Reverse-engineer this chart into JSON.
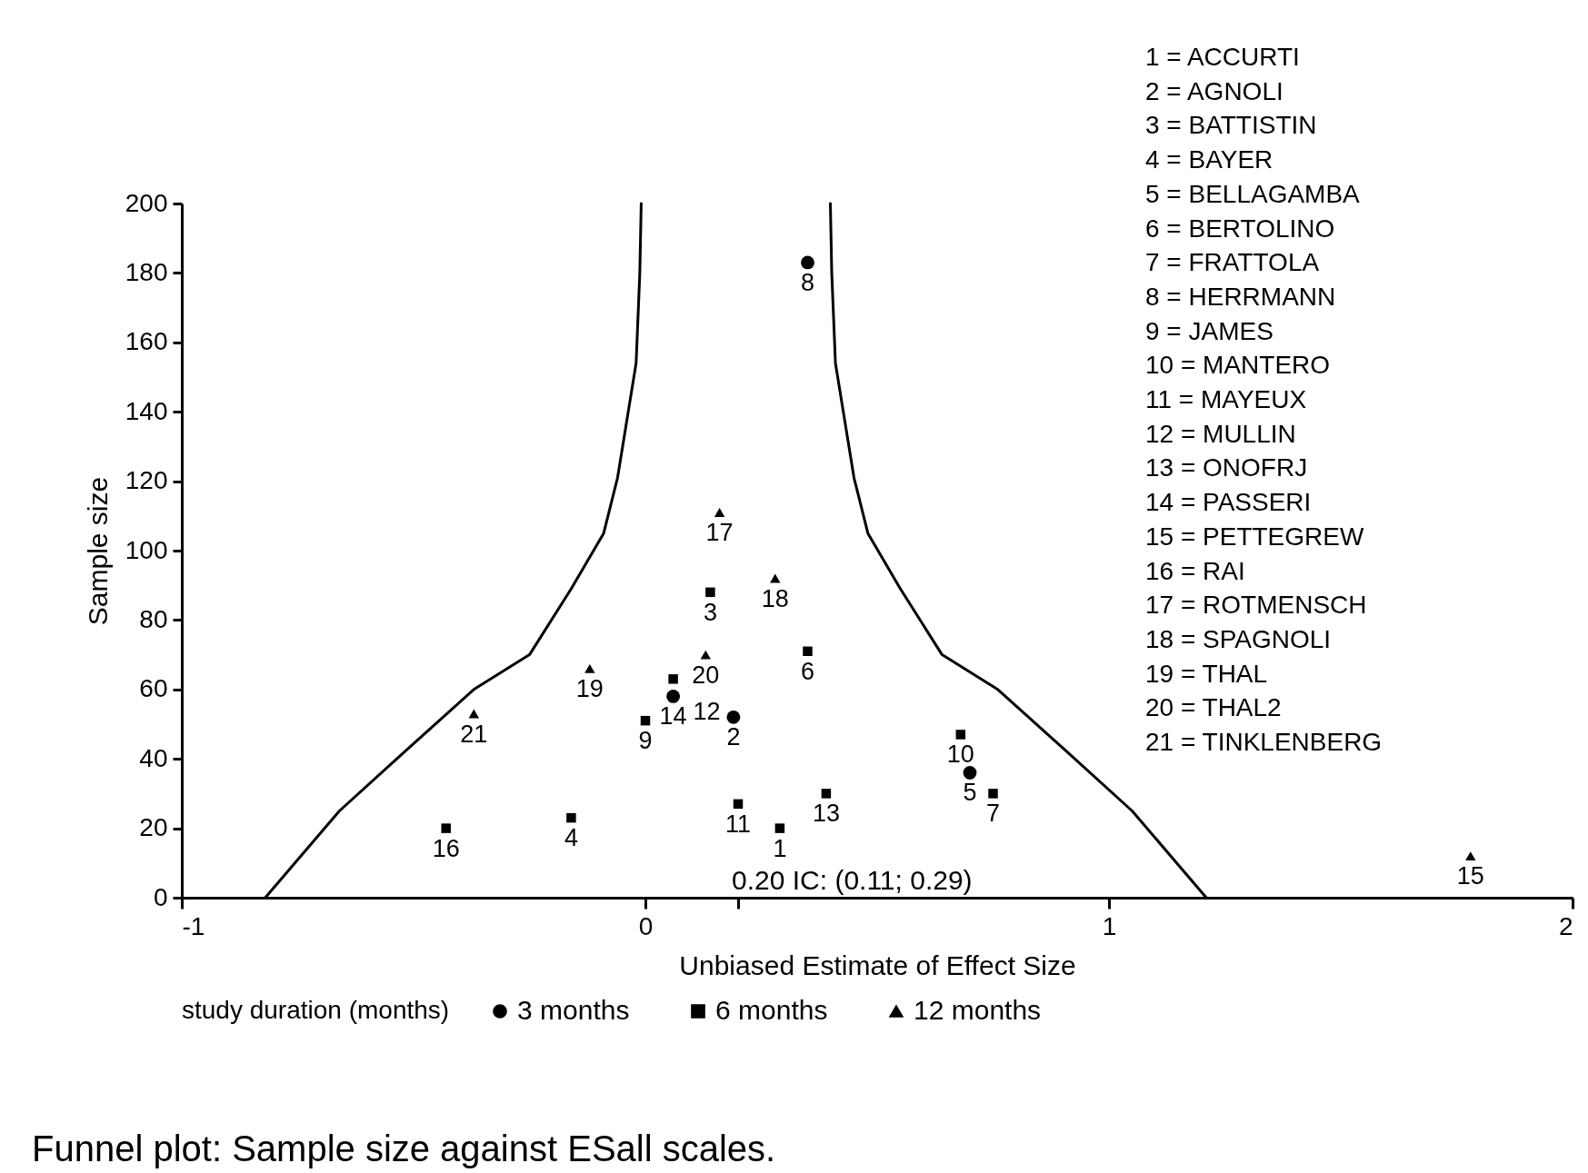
{
  "chart_data": {
    "type": "scatter",
    "title": "Funnel plot: Sample size against ESall scales.",
    "xlabel": "Unbiased Estimate of Effect Size",
    "ylabel": "Sample size",
    "legend_title": "study duration (months)",
    "xlim": [
      -1,
      2
    ],
    "xticks": [
      -1,
      0,
      {
        "value": 0.2,
        "label": null
      },
      1,
      2
    ],
    "ylim": [
      0,
      200
    ],
    "yticks": [
      0,
      20,
      40,
      60,
      80,
      100,
      120,
      140,
      160,
      180,
      200
    ],
    "grid": false,
    "legend": "bottom",
    "series": [
      {
        "name": "3 months",
        "marker": "circle",
        "color": "#000000",
        "x": [
          0.19,
          0.7,
          0.35,
          0.06
        ],
        "values": [
          52,
          36,
          183,
          58
        ]
      },
      {
        "name": "6 months",
        "marker": "square",
        "color": "#000000",
        "x": [
          0.29,
          0.14,
          -0.16,
          0.35,
          0.75,
          0.0,
          0.68,
          0.2,
          0.06,
          0.39,
          -0.43
        ],
        "values": [
          20,
          88,
          23,
          71,
          30,
          51,
          47,
          27,
          63,
          30,
          20
        ]
      },
      {
        "name": "12 months",
        "marker": "triangle",
        "color": "#000000",
        "x": [
          1.78,
          0.16,
          0.28,
          -0.12,
          0.13,
          -0.37
        ],
        "values": [
          12,
          111,
          92,
          66,
          70,
          53
        ]
      },
      {
        "type": "line",
        "marker": "none",
        "color": "#000000",
        "x": [
          -0.82,
          -0.66,
          -0.52,
          -0.37,
          -0.25,
          -0.16,
          -0.09,
          -0.06,
          -0.02,
          -0.012,
          -0.009
        ],
        "values": [
          0,
          25,
          42,
          60,
          70,
          89,
          105,
          121,
          154,
          180,
          200
        ]
      },
      {
        "type": "line",
        "marker": "none",
        "color": "#000000",
        "x": [
          1.21,
          1.05,
          0.91,
          0.76,
          0.64,
          0.55,
          0.48,
          0.45,
          0.41,
          0.402,
          0.399
        ],
        "values": [
          0,
          25,
          42,
          60,
          70,
          89,
          105,
          121,
          154,
          180,
          200
        ]
      }
    ],
    "annotations": [
      "0.20 IC: (0.11; 0.29)",
      {
        "text": "1",
        "x": 0.29,
        "y": 20
      },
      {
        "text": "2",
        "x": 0.19,
        "y": 52
      },
      {
        "text": "3",
        "x": 0.14,
        "y": 88
      },
      {
        "text": "4",
        "x": -0.16,
        "y": 23
      },
      {
        "text": "5",
        "x": 0.7,
        "y": 36
      },
      {
        "text": "6",
        "x": 0.35,
        "y": 71
      },
      {
        "text": "7",
        "x": 0.75,
        "y": 30
      },
      {
        "text": "8",
        "x": 0.35,
        "y": 183
      },
      {
        "text": "9",
        "x": 0.0,
        "y": 51
      },
      {
        "text": "10",
        "x": 0.68,
        "y": 47
      },
      {
        "text": "11",
        "x": 0.2,
        "y": 27
      },
      {
        "text": "12",
        "x": 0.06,
        "y": 63
      },
      {
        "text": "13",
        "x": 0.39,
        "y": 30
      },
      {
        "text": "14",
        "x": 0.06,
        "y": 58
      },
      {
        "text": "15",
        "x": 1.78,
        "y": 12
      },
      {
        "text": "16",
        "x": -0.43,
        "y": 20
      },
      {
        "text": "17",
        "x": 0.16,
        "y": 111
      },
      {
        "text": "18",
        "x": 0.28,
        "y": 92
      },
      {
        "text": "19",
        "x": -0.12,
        "y": 66
      },
      {
        "text": "20",
        "x": 0.13,
        "y": 70
      },
      {
        "text": "21",
        "x": -0.37,
        "y": 53
      },
      "1 = ACCURTI",
      "2 = AGNOLI",
      "3 = BATTISTIN",
      "4 = BAYER",
      "5 = BELLAGAMBA",
      "6 = BERTOLINO",
      "7 = FRATTOLA",
      "8 = HERRMANN",
      "9 = JAMES",
      "10 = MANTERO",
      "11 = MAYEUX",
      "12 = MULLIN",
      "13 = ONOFRJ",
      "14 = PASSERI",
      "15 = PETTEGREW",
      "16 = RAI",
      "17 = ROTMENSCH",
      "18 = SPAGNOLI",
      "19 = THAL",
      "20 = THAL2",
      "21 = TINKLENBERG"
    ]
  }
}
